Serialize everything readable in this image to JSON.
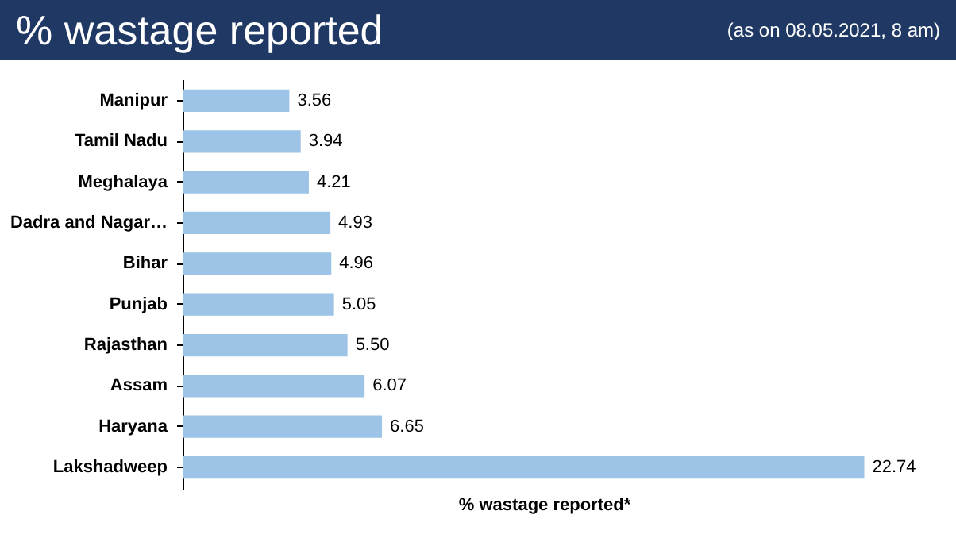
{
  "chart_data": {
    "type": "bar",
    "orientation": "horizontal",
    "title": "% wastage reported",
    "subtitle": "(as on 08.05.2021, 8 am)",
    "xlabel": "% wastage reported*",
    "categories": [
      "Manipur",
      "Tamil Nadu",
      "Meghalaya",
      "Dadra and Nagar…",
      "Bihar",
      "Punjab",
      "Rajasthan",
      "Assam",
      "Haryana",
      "Lakshadweep"
    ],
    "values": [
      3.56,
      3.94,
      4.21,
      4.93,
      4.96,
      5.05,
      5.5,
      6.07,
      6.65,
      22.74
    ],
    "value_labels": [
      "3.56",
      "3.94",
      "4.21",
      "4.93",
      "4.96",
      "5.05",
      "5.50",
      "6.07",
      "6.65",
      "22.74"
    ],
    "color": "#9dc3e6"
  }
}
